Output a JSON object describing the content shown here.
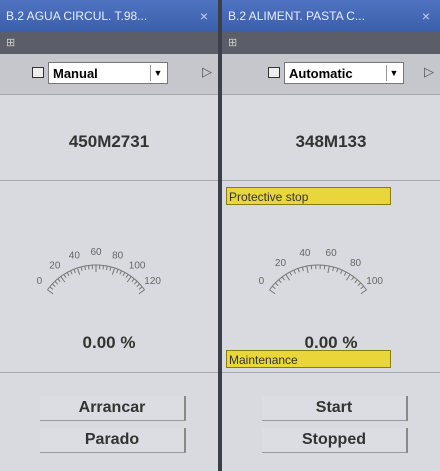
{
  "panels": [
    {
      "title": "B.2 AGUA CIRCUL. T.98...",
      "close": "×",
      "tool": "⊞",
      "mode": "Manual",
      "code": "450M2731",
      "gauge": [
        "0",
        "20",
        "40",
        "60",
        "80",
        "100",
        "120"
      ],
      "value": "0.00 %",
      "buttons": [
        "Arrancar",
        "Parado"
      ]
    },
    {
      "title": "B.2 ALIMENT. PASTA C...",
      "close": "×",
      "tool": "⊞",
      "mode": "Automatic",
      "code": "348M133",
      "status": "Protective stop",
      "gauge": [
        "0",
        "20",
        "40",
        "60",
        "80",
        "100"
      ],
      "value": "0.00 %",
      "note": "Maintenance",
      "buttons": [
        "Start",
        "Stopped"
      ]
    }
  ]
}
